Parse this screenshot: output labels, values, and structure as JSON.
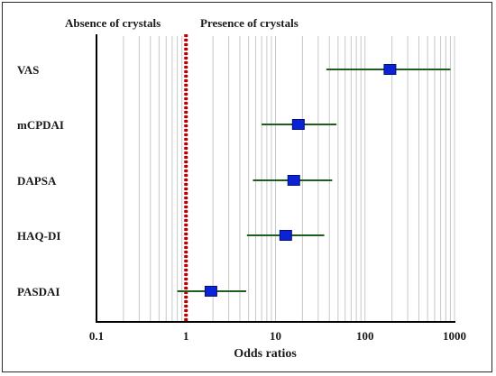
{
  "chart_data": {
    "type": "forest",
    "header_left": "Absence of crystals",
    "header_right": "Presence  of crystals",
    "xlabel": "Odds  ratios",
    "x_scale": "log",
    "xlim": [
      0.1,
      1000
    ],
    "x_ticks": [
      "0.1",
      "1",
      "10",
      "100",
      "1000"
    ],
    "reference_line": 1,
    "grid": "vertical",
    "rows": [
      {
        "label": "VAS",
        "or": 190,
        "ci_low": 37,
        "ci_high": 900
      },
      {
        "label": "mCPDAI",
        "or": 18,
        "ci_low": 7,
        "ci_high": 48
      },
      {
        "label": "DAPSA",
        "or": 16,
        "ci_low": 5.6,
        "ci_high": 43
      },
      {
        "label": "HAQ-DI",
        "or": 13,
        "ci_low": 4.8,
        "ci_high": 35
      },
      {
        "label": "PASDAI",
        "or": 1.9,
        "ci_low": 0.8,
        "ci_high": 4.7
      }
    ],
    "colors": {
      "marker": "#0b22d6",
      "ci_line": "#1f5c1f",
      "reference": "#c00000",
      "grid": "#c8c8c8",
      "axis": "#000000"
    }
  }
}
